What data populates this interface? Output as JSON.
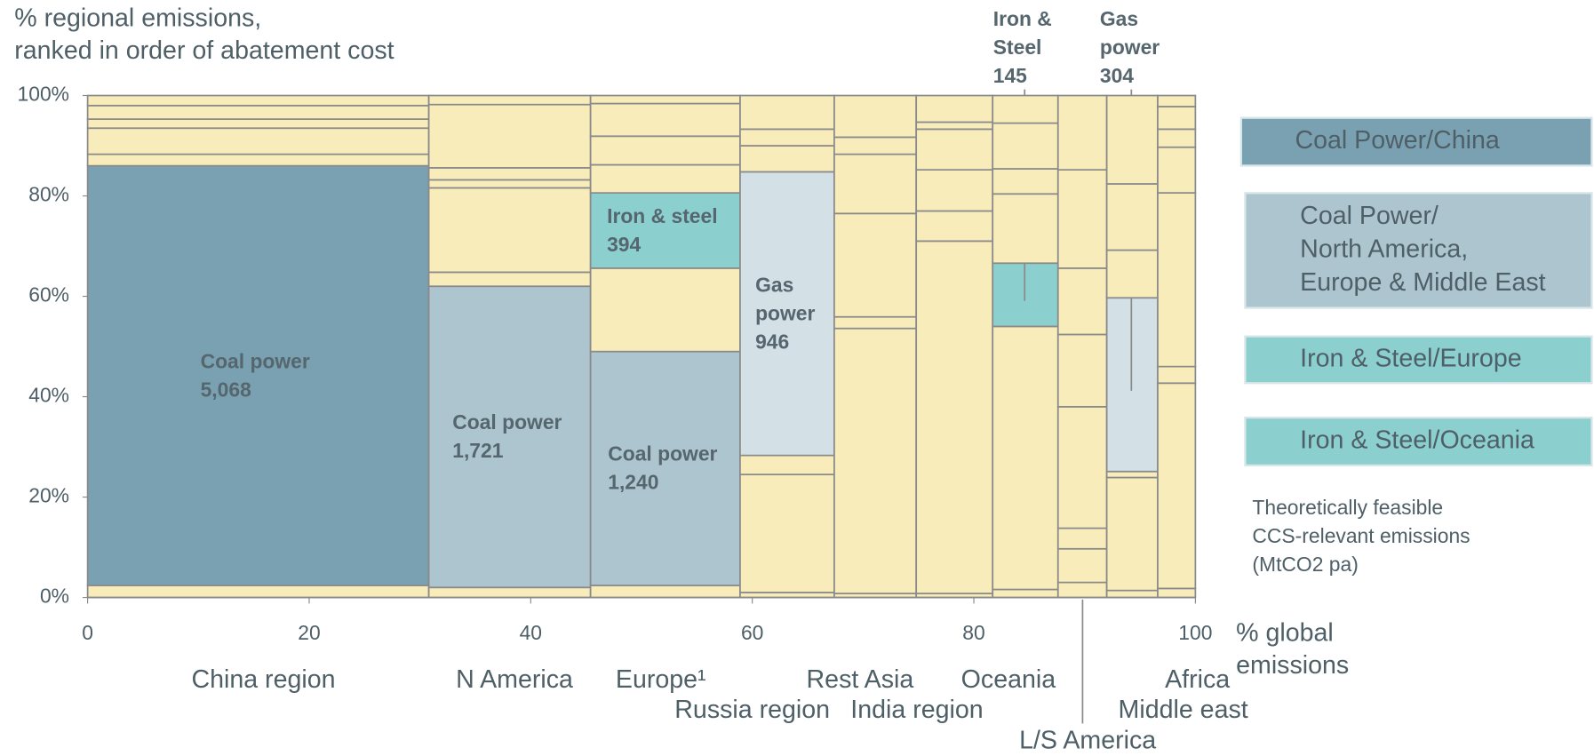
{
  "chart_data": {
    "type": "marimekko",
    "y_title": [
      "% regional emissions,",
      "ranked in order of abatement cost"
    ],
    "x_title": [
      "% global",
      "emissions"
    ],
    "xlim": [
      0,
      100
    ],
    "xticks": [
      0,
      20,
      40,
      60,
      80,
      100
    ],
    "ylim": [
      0,
      100
    ],
    "yticks": [
      {
        "value": 0,
        "label": "0%"
      },
      {
        "value": 20,
        "label": "20%"
      },
      {
        "value": 40,
        "label": "40%"
      },
      {
        "value": 60,
        "label": "60%"
      },
      {
        "value": 80,
        "label": "80%"
      },
      {
        "value": 100,
        "label": "100%"
      }
    ],
    "columns": [
      {
        "name": "China region",
        "width": 30.8,
        "segments": [
          {
            "value": 2.4,
            "color": "#f8ecbb"
          },
          {
            "value": 83.6,
            "color": "#7aa1b1",
            "label": [
              "Coal power",
              "5,068"
            ]
          },
          {
            "value": 2.3,
            "color": "#f8ecbb"
          },
          {
            "value": 5.2,
            "color": "#f8ecbb"
          },
          {
            "value": 1.8,
            "color": "#f8ecbb"
          },
          {
            "value": 2.7,
            "color": "#f8ecbb"
          },
          {
            "value": 2.0,
            "color": "#f8ecbb"
          }
        ]
      },
      {
        "name": "N America",
        "width": 14.6,
        "segments": [
          {
            "value": 2,
            "color": "#f8ecbb"
          },
          {
            "value": 60,
            "color": "#adc5ce",
            "label": [
              "Coal power",
              "1,721"
            ]
          },
          {
            "value": 2.8,
            "color": "#f8ecbb"
          },
          {
            "value": 16.8,
            "color": "#f8ecbb"
          },
          {
            "value": 1.6,
            "color": "#f8ecbb"
          },
          {
            "value": 2.4,
            "color": "#f8ecbb"
          },
          {
            "value": 12.6,
            "color": "#f8ecbb"
          },
          {
            "value": 1.8,
            "color": "#f8ecbb"
          }
        ]
      },
      {
        "name": "Europe¹",
        "width": 13.5,
        "segments": [
          {
            "value": 2.4,
            "color": "#f8ecbb"
          },
          {
            "value": 46.6,
            "color": "#adc5ce",
            "label": [
              "Coal power",
              "1,240"
            ]
          },
          {
            "value": 16.6,
            "color": "#f8ecbb"
          },
          {
            "value": 15,
            "color": "#8ccfcf",
            "label": [
              "Iron & steel",
              "394"
            ]
          },
          {
            "value": 5.6,
            "color": "#f8ecbb"
          },
          {
            "value": 5.7,
            "color": "#f8ecbb"
          },
          {
            "value": 6.5,
            "color": "#f8ecbb"
          },
          {
            "value": 1.6,
            "color": "#f8ecbb"
          }
        ]
      },
      {
        "name": "Russia region",
        "width": 8.5,
        "segments": [
          {
            "value": 1,
            "color": "#f8ecbb"
          },
          {
            "value": 23.5,
            "color": "#f8ecbb"
          },
          {
            "value": 3.8,
            "color": "#f8ecbb"
          },
          {
            "value": 56.5,
            "color": "#d3e0e6",
            "label": [
              "Gas",
              "power",
              "946"
            ]
          },
          {
            "value": 5.2,
            "color": "#f8ecbb"
          },
          {
            "value": 3.3,
            "color": "#f8ecbb"
          },
          {
            "value": 6.7,
            "color": "#f8ecbb"
          }
        ]
      },
      {
        "name": "India region",
        "width": 7.4,
        "segments": [
          {
            "value": 0.8,
            "color": "#f8ecbb"
          },
          {
            "value": 52.8,
            "color": "#f8ecbb"
          },
          {
            "value": 2.3,
            "color": "#f8ecbb"
          },
          {
            "value": 20.6,
            "color": "#f8ecbb"
          },
          {
            "value": 11.8,
            "color": "#f8ecbb"
          },
          {
            "value": 3.4,
            "color": "#f8ecbb"
          },
          {
            "value": 8.3,
            "color": "#f8ecbb"
          }
        ]
      },
      {
        "name": "Rest Asia",
        "width": 6.9,
        "segments": [
          {
            "value": 0.8,
            "color": "#f8ecbb"
          },
          {
            "value": 70.2,
            "color": "#f8ecbb"
          },
          {
            "value": 6,
            "color": "#f8ecbb"
          },
          {
            "value": 8.2,
            "color": "#f8ecbb"
          },
          {
            "value": 8.1,
            "color": "#f8ecbb"
          },
          {
            "value": 1.4,
            "color": "#f8ecbb"
          },
          {
            "value": 5.3,
            "color": "#f8ecbb"
          }
        ]
      },
      {
        "name": "Oceania",
        "width": 5.9,
        "segments": [
          {
            "value": 1.6,
            "color": "#f8ecbb"
          },
          {
            "value": 52.4,
            "color": "#f8ecbb"
          },
          {
            "value": 12.6,
            "color": "#8ccfcf",
            "label": [
              "Iron &",
              "Steel",
              "145"
            ]
          },
          {
            "value": 13.8,
            "color": "#f8ecbb"
          },
          {
            "value": 5,
            "color": "#f8ecbb"
          },
          {
            "value": 9.1,
            "color": "#f8ecbb"
          },
          {
            "value": 5.5,
            "color": "#f8ecbb"
          }
        ]
      },
      {
        "name": "L/S America",
        "width": 4.4,
        "segments": [
          {
            "value": 3,
            "color": "#f8ecbb"
          },
          {
            "value": 6.7,
            "color": "#f8ecbb"
          },
          {
            "value": 4.1,
            "color": "#f8ecbb"
          },
          {
            "value": 24.2,
            "color": "#f8ecbb"
          },
          {
            "value": 14.4,
            "color": "#f8ecbb"
          },
          {
            "value": 13.2,
            "color": "#f8ecbb"
          },
          {
            "value": 19.6,
            "color": "#f8ecbb"
          },
          {
            "value": 14.8,
            "color": "#f8ecbb"
          }
        ]
      },
      {
        "name": "Middle east",
        "width": 4.6,
        "segments": [
          {
            "value": 1.4,
            "color": "#f8ecbb"
          },
          {
            "value": 22.5,
            "color": "#f8ecbb"
          },
          {
            "value": 1.2,
            "color": "#f8ecbb"
          },
          {
            "value": 34.6,
            "color": "#d3e0e6",
            "label": [
              "Gas",
              "power",
              "304"
            ]
          },
          {
            "value": 9.5,
            "color": "#f8ecbb"
          },
          {
            "value": 13.2,
            "color": "#f8ecbb"
          },
          {
            "value": 17.6,
            "color": "#f8ecbb"
          }
        ]
      },
      {
        "name": "Africa",
        "width": 3.4,
        "segments": [
          {
            "value": 1.8,
            "color": "#f8ecbb"
          },
          {
            "value": 40.9,
            "color": "#f8ecbb"
          },
          {
            "value": 3.3,
            "color": "#f8ecbb"
          },
          {
            "value": 34.6,
            "color": "#f8ecbb"
          },
          {
            "value": 9.1,
            "color": "#f8ecbb"
          },
          {
            "value": 3.6,
            "color": "#f8ecbb"
          },
          {
            "value": 4.5,
            "color": "#f8ecbb"
          },
          {
            "value": 2.2,
            "color": "#f8ecbb"
          }
        ]
      }
    ],
    "legend": [
      {
        "label": [
          "Coal Power/China"
        ],
        "color": "#7aa1b1"
      },
      {
        "label": [
          "Coal Power/",
          "North America,",
          "Europe & Middle East"
        ],
        "color": "#adc5ce"
      },
      {
        "label": [
          "Iron & Steel/Europe"
        ],
        "color": "#8ccfcf"
      },
      {
        "label": [
          "Iron & Steel/Oceania"
        ],
        "color": "#8ccfcf"
      }
    ],
    "note": [
      "Theoretically feasible",
      "CCS-relevant emissions",
      "(MtCO2 pa)"
    ]
  }
}
